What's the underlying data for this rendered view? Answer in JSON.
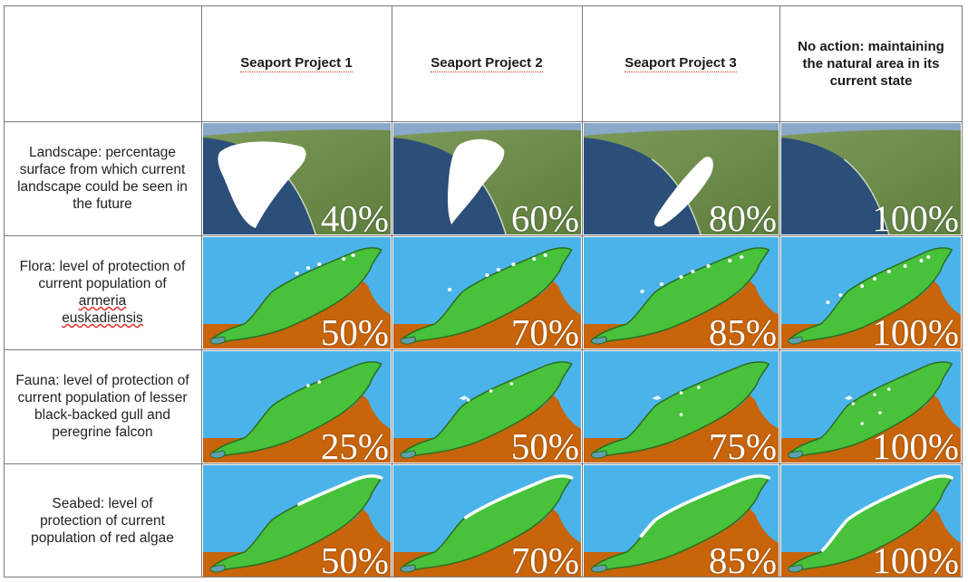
{
  "table": {
    "columns": [
      "Seaport Project 1",
      "Seaport Project 2",
      "Seaport Project 3",
      "No action: maintaining the natural area in its current state"
    ],
    "rows": [
      {
        "label_parts": [
          "Landscape: percentage surface from which current landscape could be seen in the future"
        ],
        "values": [
          "40%",
          "60%",
          "80%",
          "100%"
        ]
      },
      {
        "label_parts": [
          "Flora: level of protection of current population of",
          "armeria euskadiensis"
        ],
        "values": [
          "50%",
          "70%",
          "85%",
          "100%"
        ]
      },
      {
        "label_parts": [
          "Fauna: level of protection of current population of lesser black-backed gull and peregrine falcon"
        ],
        "values": [
          "25%",
          "50%",
          "75%",
          "100%"
        ]
      },
      {
        "label_parts": [
          "Seabed: level of protection of current population of red algae"
        ],
        "values": [
          "50%",
          "70%",
          "85%",
          "100%"
        ]
      }
    ]
  },
  "colors": {
    "sea": "#4ab4ea",
    "land_brown": "#c8640a",
    "headland_green": "#47c23a",
    "headland_outline": "#2c6e23",
    "aerial_sea": "#2b4f79",
    "aerial_land": "#5f7e3e",
    "mask_white": "#ffffff",
    "grid": "#7a7a7a"
  }
}
